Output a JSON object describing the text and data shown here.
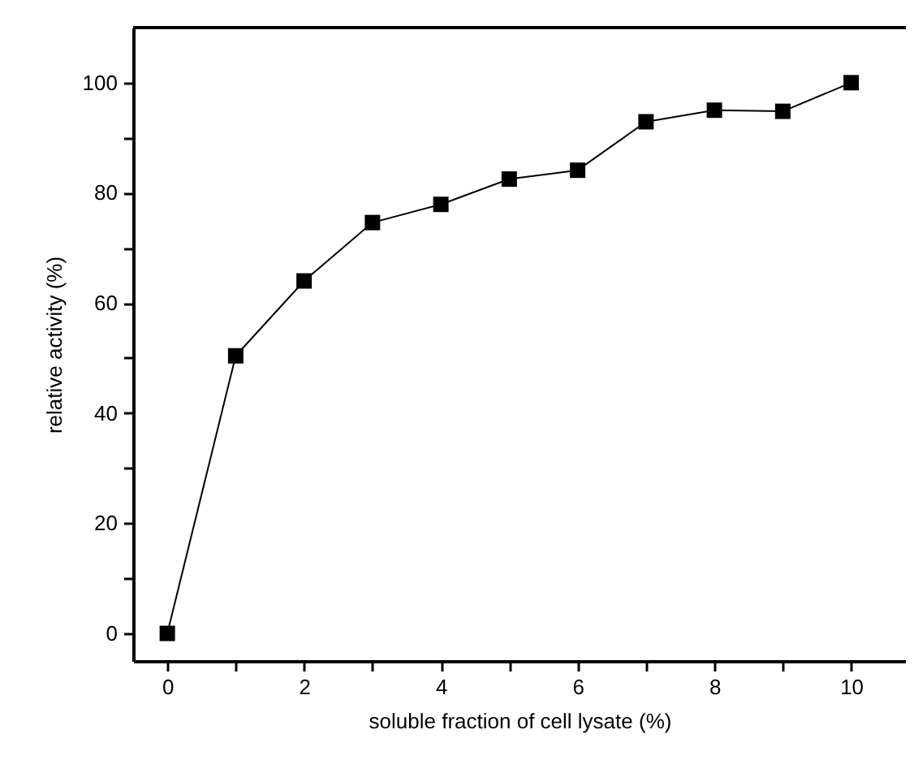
{
  "chart_data": {
    "type": "line",
    "xlabel": "soluble fraction of cell lysate (%)",
    "ylabel": "relative activity (%)",
    "x": [
      0,
      1,
      2,
      3,
      4,
      5,
      6,
      7,
      8,
      9,
      10
    ],
    "series": [
      {
        "color": "#000000",
        "values": [
          0,
          50.4,
          64,
          74.6,
          77.9,
          82.5,
          84.1,
          92.9,
          95,
          94.8,
          100
        ]
      }
    ],
    "marker": "square",
    "grid": false,
    "xlim": [
      -0.5,
      10.8
    ],
    "ylim": [
      -5,
      110
    ],
    "xticks": [
      0,
      {
        "value": 1,
        "label": null
      },
      2,
      {
        "value": 3,
        "label": null
      },
      4,
      {
        "value": 5,
        "label": null
      },
      6,
      {
        "value": 7,
        "label": null
      },
      8,
      {
        "value": 9,
        "label": null
      },
      10
    ],
    "yticks": [
      0,
      {
        "value": 10,
        "label": null
      },
      20,
      {
        "value": 30,
        "label": null
      },
      40,
      {
        "value": 50,
        "label": null
      },
      60,
      {
        "value": 70,
        "label": null
      },
      80,
      {
        "value": 90,
        "label": null
      },
      100
    ]
  }
}
